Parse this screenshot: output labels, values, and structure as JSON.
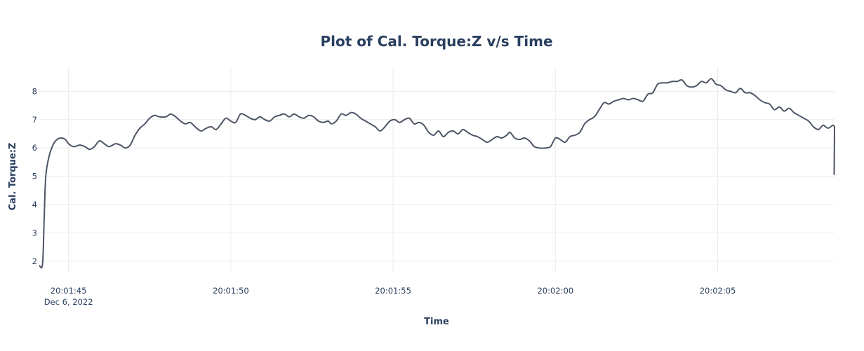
{
  "chart_data": {
    "type": "line",
    "title": "Plot of Cal. Torque:Z v/s Time",
    "xlabel": "Time",
    "ylabel": "Cal. Torque:Z",
    "x_range_seconds": [
      -0.9,
      23.6
    ],
    "y_range": [
      1.6,
      8.85
    ],
    "x_ticks": [
      {
        "t": 0,
        "label": "20:01:45",
        "sublabel": "Dec 6, 2022"
      },
      {
        "t": 5,
        "label": "20:01:50"
      },
      {
        "t": 10,
        "label": "20:01:55"
      },
      {
        "t": 15,
        "label": "20:02:00"
      },
      {
        "t": 20,
        "label": "20:02:05"
      }
    ],
    "y_ticks": [
      2,
      3,
      4,
      5,
      6,
      7,
      8
    ],
    "grid": true,
    "series": [
      {
        "name": "Cal. Torque:Z",
        "color": "#4c5566",
        "points": [
          [
            -0.9,
            1.85
          ],
          [
            -0.8,
            1.9
          ],
          [
            -0.75,
            3.5
          ],
          [
            -0.7,
            5.0
          ],
          [
            -0.6,
            5.7
          ],
          [
            -0.5,
            6.05
          ],
          [
            -0.4,
            6.25
          ],
          [
            -0.25,
            6.35
          ],
          [
            -0.1,
            6.3
          ],
          [
            0.0,
            6.15
          ],
          [
            0.15,
            6.05
          ],
          [
            0.35,
            6.1
          ],
          [
            0.5,
            6.05
          ],
          [
            0.65,
            5.95
          ],
          [
            0.8,
            6.05
          ],
          [
            0.95,
            6.25
          ],
          [
            1.1,
            6.15
          ],
          [
            1.25,
            6.05
          ],
          [
            1.45,
            6.15
          ],
          [
            1.6,
            6.1
          ],
          [
            1.75,
            6.0
          ],
          [
            1.9,
            6.1
          ],
          [
            2.05,
            6.45
          ],
          [
            2.2,
            6.7
          ],
          [
            2.35,
            6.85
          ],
          [
            2.5,
            7.05
          ],
          [
            2.65,
            7.15
          ],
          [
            2.8,
            7.1
          ],
          [
            3.0,
            7.1
          ],
          [
            3.15,
            7.2
          ],
          [
            3.3,
            7.1
          ],
          [
            3.45,
            6.95
          ],
          [
            3.6,
            6.85
          ],
          [
            3.75,
            6.9
          ],
          [
            3.9,
            6.75
          ],
          [
            4.0,
            6.65
          ],
          [
            4.1,
            6.6
          ],
          [
            4.25,
            6.7
          ],
          [
            4.4,
            6.75
          ],
          [
            4.55,
            6.65
          ],
          [
            4.7,
            6.85
          ],
          [
            4.85,
            7.05
          ],
          [
            5.0,
            6.95
          ],
          [
            5.15,
            6.9
          ],
          [
            5.3,
            7.2
          ],
          [
            5.45,
            7.15
          ],
          [
            5.6,
            7.05
          ],
          [
            5.75,
            7.0
          ],
          [
            5.9,
            7.1
          ],
          [
            6.05,
            7.0
          ],
          [
            6.2,
            6.95
          ],
          [
            6.35,
            7.1
          ],
          [
            6.5,
            7.15
          ],
          [
            6.65,
            7.2
          ],
          [
            6.8,
            7.1
          ],
          [
            6.95,
            7.2
          ],
          [
            7.1,
            7.1
          ],
          [
            7.25,
            7.05
          ],
          [
            7.4,
            7.15
          ],
          [
            7.55,
            7.1
          ],
          [
            7.7,
            6.95
          ],
          [
            7.85,
            6.9
          ],
          [
            8.0,
            6.95
          ],
          [
            8.1,
            6.85
          ],
          [
            8.25,
            6.95
          ],
          [
            8.4,
            7.2
          ],
          [
            8.55,
            7.15
          ],
          [
            8.7,
            7.25
          ],
          [
            8.85,
            7.2
          ],
          [
            9.0,
            7.05
          ],
          [
            9.15,
            6.95
          ],
          [
            9.3,
            6.85
          ],
          [
            9.45,
            6.75
          ],
          [
            9.6,
            6.6
          ],
          [
            9.75,
            6.75
          ],
          [
            9.9,
            6.95
          ],
          [
            10.05,
            7.0
          ],
          [
            10.2,
            6.9
          ],
          [
            10.35,
            7.0
          ],
          [
            10.5,
            7.05
          ],
          [
            10.65,
            6.85
          ],
          [
            10.8,
            6.9
          ],
          [
            10.95,
            6.8
          ],
          [
            11.1,
            6.55
          ],
          [
            11.25,
            6.45
          ],
          [
            11.4,
            6.6
          ],
          [
            11.55,
            6.4
          ],
          [
            11.7,
            6.55
          ],
          [
            11.85,
            6.6
          ],
          [
            12.0,
            6.5
          ],
          [
            12.15,
            6.65
          ],
          [
            12.3,
            6.55
          ],
          [
            12.45,
            6.45
          ],
          [
            12.6,
            6.4
          ],
          [
            12.75,
            6.3
          ],
          [
            12.9,
            6.2
          ],
          [
            13.05,
            6.3
          ],
          [
            13.2,
            6.4
          ],
          [
            13.35,
            6.35
          ],
          [
            13.5,
            6.45
          ],
          [
            13.6,
            6.55
          ],
          [
            13.75,
            6.35
          ],
          [
            13.9,
            6.3
          ],
          [
            14.05,
            6.35
          ],
          [
            14.2,
            6.25
          ],
          [
            14.35,
            6.05
          ],
          [
            14.5,
            6.0
          ],
          [
            14.7,
            6.0
          ],
          [
            14.85,
            6.05
          ],
          [
            15.0,
            6.35
          ],
          [
            15.15,
            6.3
          ],
          [
            15.3,
            6.2
          ],
          [
            15.45,
            6.4
          ],
          [
            15.6,
            6.45
          ],
          [
            15.75,
            6.55
          ],
          [
            15.9,
            6.85
          ],
          [
            16.05,
            7.0
          ],
          [
            16.2,
            7.1
          ],
          [
            16.35,
            7.35
          ],
          [
            16.5,
            7.6
          ],
          [
            16.65,
            7.55
          ],
          [
            16.8,
            7.65
          ],
          [
            16.95,
            7.7
          ],
          [
            17.1,
            7.75
          ],
          [
            17.25,
            7.7
          ],
          [
            17.4,
            7.75
          ],
          [
            17.55,
            7.7
          ],
          [
            17.7,
            7.65
          ],
          [
            17.85,
            7.9
          ],
          [
            18.0,
            7.95
          ],
          [
            18.15,
            8.25
          ],
          [
            18.3,
            8.3
          ],
          [
            18.45,
            8.3
          ],
          [
            18.6,
            8.35
          ],
          [
            18.75,
            8.35
          ],
          [
            18.9,
            8.4
          ],
          [
            19.05,
            8.2
          ],
          [
            19.2,
            8.15
          ],
          [
            19.35,
            8.2
          ],
          [
            19.5,
            8.35
          ],
          [
            19.65,
            8.3
          ],
          [
            19.8,
            8.45
          ],
          [
            19.95,
            8.25
          ],
          [
            20.1,
            8.2
          ],
          [
            20.25,
            8.05
          ],
          [
            20.4,
            8.0
          ],
          [
            20.55,
            7.95
          ],
          [
            20.7,
            8.1
          ],
          [
            20.85,
            7.95
          ],
          [
            21.0,
            7.95
          ],
          [
            21.15,
            7.85
          ],
          [
            21.3,
            7.7
          ],
          [
            21.45,
            7.6
          ],
          [
            21.6,
            7.55
          ],
          [
            21.75,
            7.35
          ],
          [
            21.9,
            7.45
          ],
          [
            22.05,
            7.3
          ],
          [
            22.2,
            7.4
          ],
          [
            22.35,
            7.25
          ],
          [
            22.5,
            7.15
          ],
          [
            22.65,
            7.05
          ],
          [
            22.8,
            6.95
          ],
          [
            22.95,
            6.75
          ],
          [
            23.1,
            6.65
          ],
          [
            23.25,
            6.8
          ],
          [
            23.4,
            6.7
          ],
          [
            23.55,
            6.8
          ],
          [
            23.6,
            6.75
          ]
        ]
      }
    ]
  }
}
